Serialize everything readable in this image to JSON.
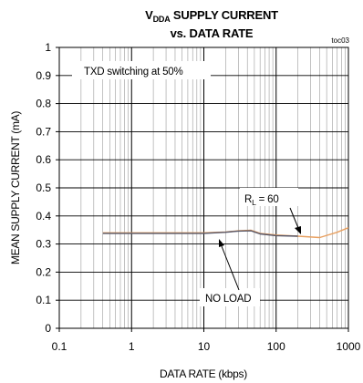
{
  "chart_data": {
    "type": "line",
    "title": "SUPPLY CURRENT",
    "title_symbol": "V",
    "title_symbol_sub": "DDA",
    "subtitle": "vs. DATA RATE",
    "figure_code": "toc03",
    "xlabel": "DATA RATE (kbps)",
    "ylabel": "MEAN SUPPLY CURRENT (mA)",
    "x_scale": "log",
    "xlim": [
      0.1,
      1000
    ],
    "ylim": [
      0,
      1
    ],
    "x_ticks": [
      "0.1",
      "1",
      "10",
      "100",
      "1000"
    ],
    "y_ticks": [
      "0",
      "0.1",
      "0.2",
      "0.3",
      "0.4",
      "0.5",
      "0.6",
      "0.7",
      "0.8",
      "0.9",
      "1"
    ],
    "grid": true,
    "condition": "TXD switching at 50%",
    "series": [
      {
        "name": "R_L = 60",
        "label_symbol": "R",
        "label_sub": "L",
        "label_rest": " = 60",
        "color": "#e8a060",
        "x": [
          0.4,
          1,
          2,
          5,
          10,
          20,
          30,
          45,
          60,
          100,
          200,
          400,
          700,
          1000
        ],
        "y": [
          0.34,
          0.34,
          0.34,
          0.34,
          0.34,
          0.343,
          0.347,
          0.349,
          0.338,
          0.332,
          0.328,
          0.323,
          0.342,
          0.358
        ]
      },
      {
        "name": "NO LOAD",
        "color": "#555566",
        "x": [
          0.4,
          1,
          2,
          5,
          10,
          20,
          30,
          45,
          60,
          100,
          200
        ],
        "y": [
          0.338,
          0.338,
          0.338,
          0.338,
          0.338,
          0.342,
          0.346,
          0.347,
          0.336,
          0.33,
          0.328
        ]
      }
    ]
  }
}
